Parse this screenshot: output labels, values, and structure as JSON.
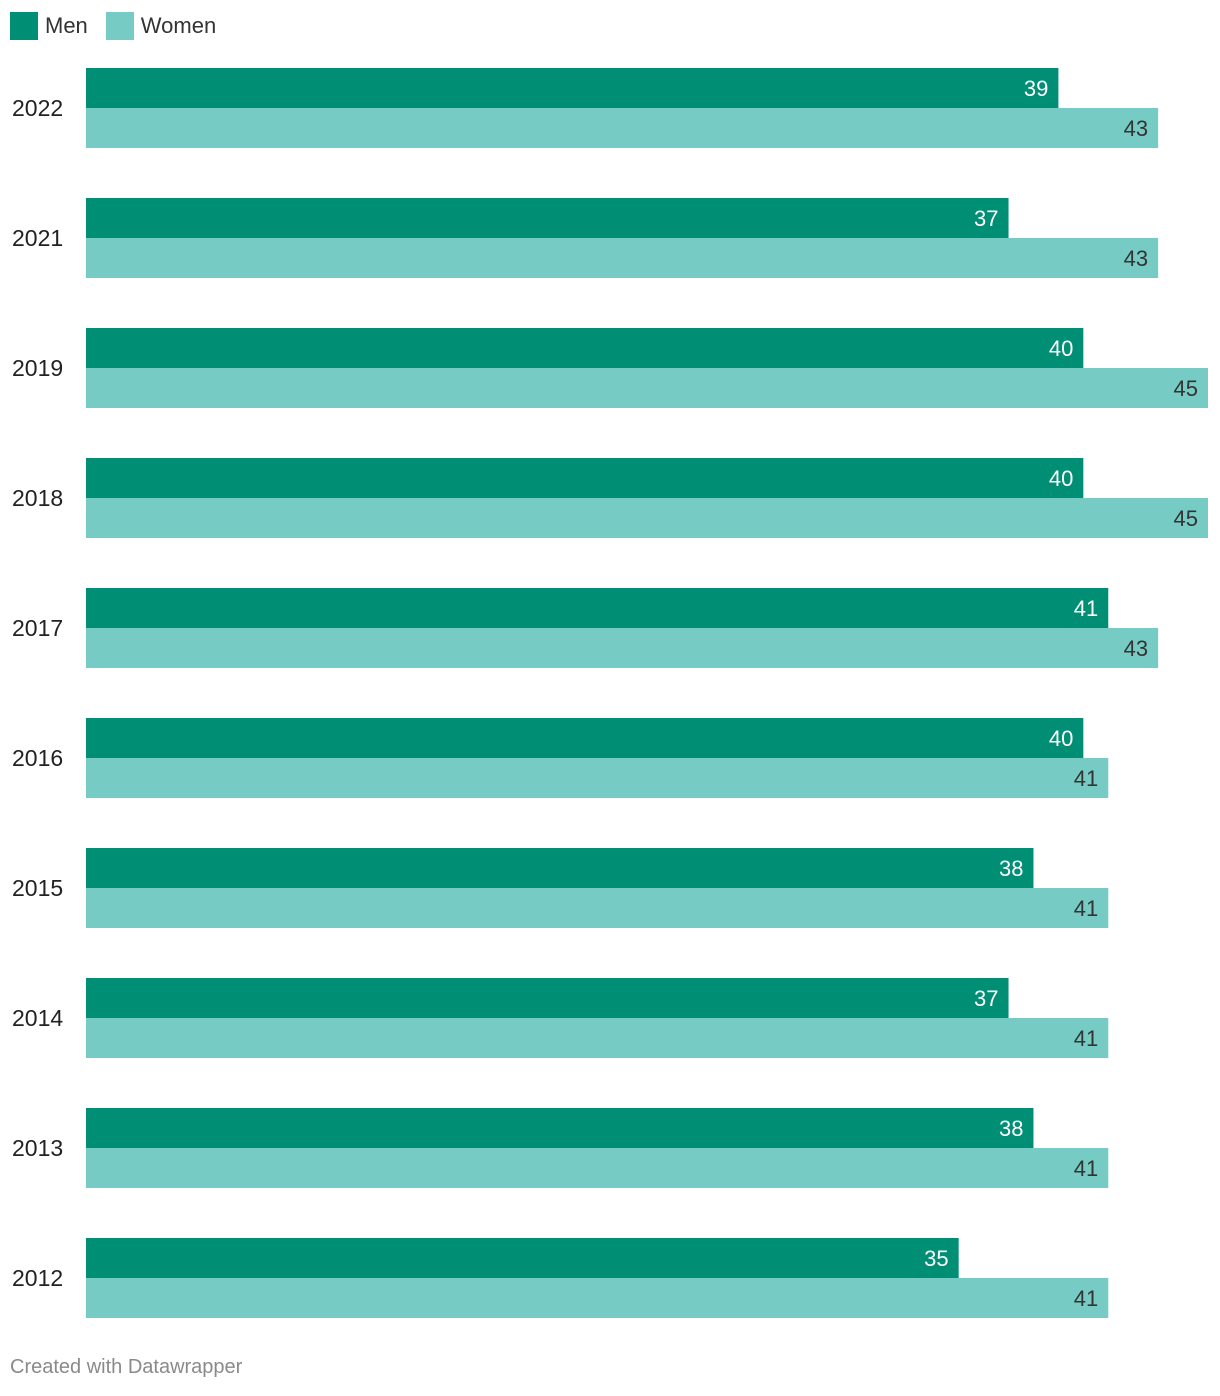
{
  "legend": {
    "men_label": "Men",
    "women_label": "Women"
  },
  "colors": {
    "men": "#008f74",
    "women": "#76ccc4",
    "label_on_men": "#ffffff",
    "label_on_women": "#333333",
    "category_text": "#222222"
  },
  "chart_data": {
    "type": "bar",
    "orientation": "horizontal",
    "categories": [
      "2022",
      "2021",
      "2019",
      "2018",
      "2017",
      "2016",
      "2015",
      "2014",
      "2013",
      "2012"
    ],
    "series": [
      {
        "name": "Men",
        "values": [
          39,
          37,
          40,
          40,
          41,
          40,
          38,
          37,
          38,
          35
        ]
      },
      {
        "name": "Women",
        "values": [
          43,
          43,
          45,
          45,
          43,
          41,
          41,
          41,
          41,
          41
        ]
      }
    ],
    "xlim": [
      0,
      45
    ],
    "grid": false,
    "legend_position": "top-left",
    "data_labels": true
  },
  "footer": {
    "credit": "Created with Datawrapper"
  }
}
